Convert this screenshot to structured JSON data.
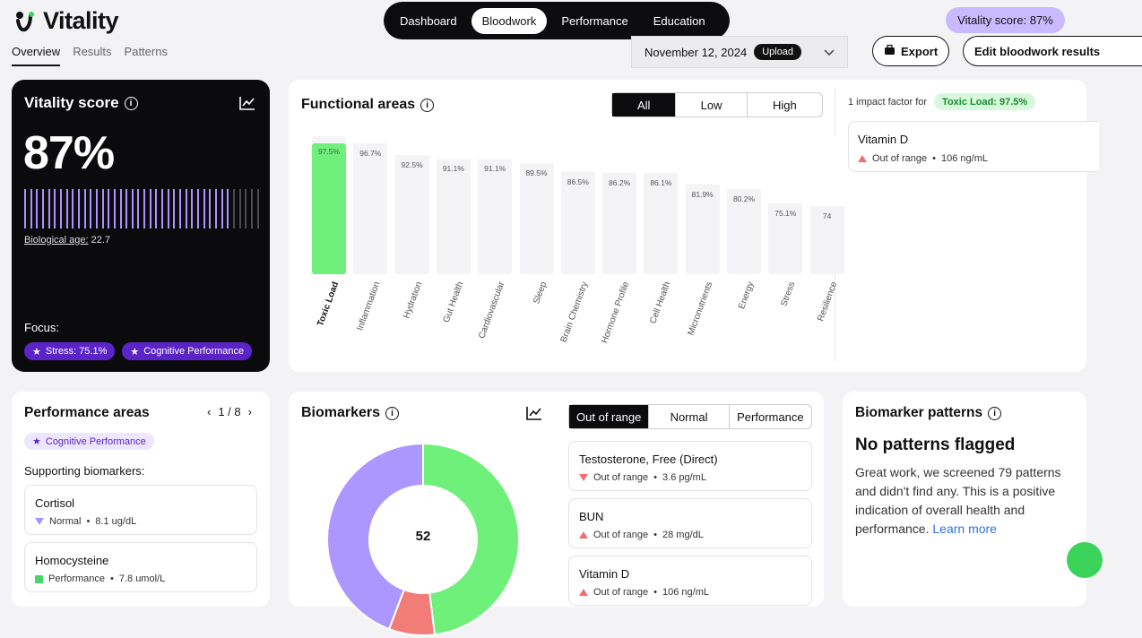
{
  "brand": {
    "name": "Vitality"
  },
  "topnav": [
    "Dashboard",
    "Bloodwork",
    "Performance",
    "Education"
  ],
  "score_pill": "Vitality score: 87%",
  "subtabs": [
    "Overview",
    "Results",
    "Patterns"
  ],
  "date": {
    "value": "November 12, 2024",
    "upload": "Upload"
  },
  "actions": {
    "export": "Export",
    "edit": "Edit bloodwork results"
  },
  "vitality": {
    "title": "Vitality score",
    "value": "87%",
    "progress": 0.87,
    "bio_label": "Biological age:",
    "bio_value": "22.7",
    "focus_label": "Focus:",
    "focus": [
      "Stress: 75.1%",
      "Cognitive Performance"
    ]
  },
  "functional": {
    "title": "Functional areas",
    "filters": [
      "All",
      "Low",
      "High"
    ],
    "impact_text": "1 impact factor for",
    "impact_pill": "Toxic Load: 97.5%",
    "factor": {
      "name": "Vitamin D",
      "status": "Out of range",
      "value": "106 ng/mL"
    }
  },
  "chart_data": {
    "type": "bar",
    "categories": [
      "Toxic Load",
      "Inflammation",
      "Hydration",
      "Gut Health",
      "Cardiovascular",
      "Sleep",
      "Brain Chemistry",
      "Hormone Profile",
      "Cell Health",
      "Micronutrients",
      "Energy",
      "Stress",
      "Resilience"
    ],
    "values": [
      97.5,
      96.7,
      92.5,
      91.1,
      91.1,
      89.5,
      86.5,
      86.2,
      86.1,
      81.9,
      80.2,
      75.1,
      74
    ],
    "value_labels": [
      "97.5%",
      "96.7%",
      "92.5%",
      "91.1%",
      "91.1%",
      "89.5%",
      "86.5%",
      "86.2%",
      "86.1%",
      "81.9%",
      "80.2%",
      "75.1%",
      "74"
    ],
    "highlight": "Toxic Load",
    "ylim": [
      0,
      100
    ]
  },
  "performance": {
    "title": "Performance areas",
    "pager": "1 / 8",
    "tag": "Cognitive Performance",
    "supporting": "Supporting biomarkers:",
    "items": [
      {
        "name": "Cortisol",
        "status": "Normal",
        "value": "8.1 ug/dL"
      },
      {
        "name": "Homocysteine",
        "status": "Performance",
        "value": "7.8 umol/L"
      }
    ]
  },
  "biomarkers": {
    "title": "Biomarkers",
    "tabs": [
      "Out of range",
      "Normal",
      "Performance"
    ],
    "total": "52",
    "donut": [
      {
        "label": "Normal",
        "value": 25,
        "color": "#6ef07a"
      },
      {
        "label": "Out of range",
        "value": 4,
        "color": "#f27c78"
      },
      {
        "label": "Performance",
        "value": 23,
        "color": "#ac96ff"
      }
    ],
    "items": [
      {
        "name": "Testosterone, Free (Direct)",
        "status": "Out of range",
        "value": "3.6 pg/mL"
      },
      {
        "name": "BUN",
        "status": "Out of range",
        "value": "28 mg/dL"
      },
      {
        "name": "Vitamin D",
        "status": "Out of range",
        "value": "106 ng/mL"
      }
    ]
  },
  "patterns": {
    "title": "Biomarker patterns",
    "heading": "No patterns flagged",
    "body": "Great work, we screened 79 patterns and didn't find any. This is a positive indication of overall health and performance.",
    "link": "Learn more"
  }
}
